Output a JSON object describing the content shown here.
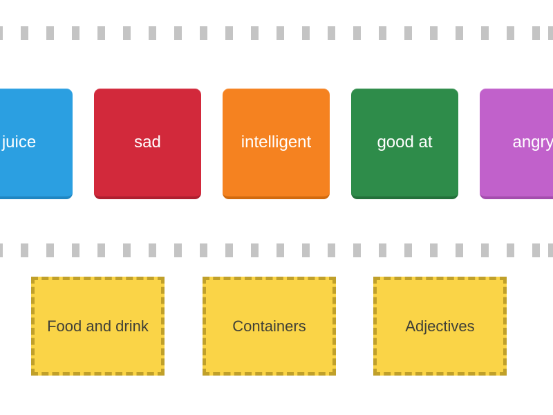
{
  "game": {
    "type": "group-sort",
    "cards": [
      {
        "label": "juice",
        "color": "#2b9fe1",
        "edge_color": "#1f86c2"
      },
      {
        "label": "sad",
        "color": "#d2293b",
        "edge_color": "#ae1f2f"
      },
      {
        "label": "intelligent",
        "color": "#f58220",
        "edge_color": "#d16a0e"
      },
      {
        "label": "good at",
        "color": "#2e8c4a",
        "edge_color": "#23703a"
      },
      {
        "label": "angry",
        "color": "#c161cb",
        "edge_color": "#a44dae"
      }
    ],
    "groups": [
      {
        "label": "Food and drink"
      },
      {
        "label": "Containers"
      },
      {
        "label": "Adjectives"
      }
    ],
    "colors": {
      "card_text": "#ffffff",
      "group_bg": "#fad447",
      "group_border": "#c0a02a",
      "group_text": "#3f3f37",
      "dash": "#c4c4c4",
      "background": "#ffffff"
    }
  }
}
